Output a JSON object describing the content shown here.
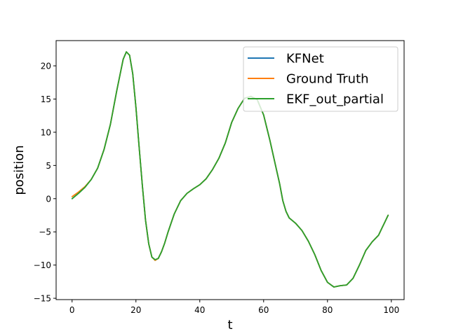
{
  "chart_data": {
    "type": "line",
    "title": "",
    "xlabel": "t",
    "ylabel": "position",
    "xlim": [
      -5,
      104
    ],
    "ylim": [
      -15.2,
      23.8
    ],
    "xticks": [
      0,
      20,
      40,
      60,
      80,
      100
    ],
    "yticks": [
      -15,
      -10,
      -5,
      0,
      5,
      10,
      15,
      20
    ],
    "grid": false,
    "legend_position": "top-right",
    "series": [
      {
        "name": "KFNet",
        "color": "#1f77b4",
        "x": [
          0,
          2,
          4,
          6,
          8,
          10,
          12,
          14,
          16,
          17,
          18,
          19,
          20,
          21,
          22,
          23,
          24,
          25,
          26,
          27,
          28,
          29,
          30,
          31,
          32,
          34,
          36,
          38,
          40,
          42,
          44,
          46,
          48,
          50,
          52,
          54,
          56,
          58,
          60,
          62,
          64,
          65,
          66,
          67,
          68,
          70,
          72,
          74,
          76,
          78,
          80,
          82,
          84,
          86,
          88,
          90,
          92,
          94,
          96,
          97,
          98,
          99
        ],
        "y": [
          0,
          0.8,
          1.7,
          2.9,
          4.6,
          7.4,
          11.2,
          16.3,
          21.0,
          22.1,
          21.6,
          18.8,
          13.7,
          7.8,
          2.0,
          -3.2,
          -6.8,
          -8.8,
          -9.2,
          -9.0,
          -8.0,
          -6.7,
          -5.1,
          -3.7,
          -2.3,
          -0.3,
          0.8,
          1.5,
          2.1,
          3.0,
          4.4,
          6.1,
          8.4,
          11.5,
          13.6,
          15.1,
          15.4,
          14.9,
          12.6,
          8.7,
          4.4,
          2.3,
          -0.3,
          -1.9,
          -2.9,
          -3.7,
          -4.8,
          -6.4,
          -8.4,
          -10.8,
          -12.6,
          -13.3,
          -13.1,
          -13.0,
          -12.0,
          -10.0,
          -7.8,
          -6.5,
          -5.5,
          -4.5,
          -3.5,
          -2.5
        ],
        "_note": "index-aligned with x; the visible curve follows the same trace as ground truth"
      },
      {
        "name": "Ground Truth",
        "color": "#ff7f0e",
        "x": [
          0,
          2,
          4,
          6,
          8,
          10,
          12,
          14,
          16,
          17,
          18,
          19,
          20,
          21,
          22,
          23,
          24,
          25,
          26,
          27,
          28,
          29,
          30,
          31,
          32,
          34,
          36,
          38,
          40,
          42,
          44,
          46,
          48,
          50,
          52,
          54,
          56,
          58,
          60,
          62,
          64,
          65,
          66,
          67,
          68,
          70,
          72,
          74,
          76,
          78,
          80,
          82,
          84,
          86,
          88,
          90,
          92,
          94,
          96,
          97,
          98,
          99
        ],
        "y": [
          0.3,
          1.0,
          1.8,
          2.9,
          4.6,
          7.4,
          11.2,
          16.3,
          21.0,
          22.1,
          21.6,
          18.8,
          13.7,
          7.8,
          2.0,
          -3.2,
          -6.8,
          -8.8,
          -9.3,
          -9.0,
          -8.0,
          -6.7,
          -5.1,
          -3.7,
          -2.3,
          -0.3,
          0.8,
          1.5,
          2.1,
          3.0,
          4.4,
          6.1,
          8.4,
          11.5,
          13.6,
          15.1,
          15.4,
          14.9,
          12.6,
          8.7,
          4.4,
          2.3,
          -0.3,
          -1.9,
          -2.9,
          -3.7,
          -4.8,
          -6.4,
          -8.4,
          -10.8,
          -12.6,
          -13.3,
          -13.1,
          -13.0,
          -12.0,
          -10.0,
          -7.8,
          -6.5,
          -5.5,
          -4.5,
          -3.5,
          -2.5
        ]
      },
      {
        "name": "EKF_out_partial",
        "color": "#2ca02c",
        "x": [
          0,
          2,
          4,
          6,
          8,
          10,
          12,
          14,
          16,
          17,
          18,
          19,
          20,
          21,
          22,
          23,
          24,
          25,
          26,
          27,
          28,
          29,
          30,
          31,
          32,
          34,
          36,
          38,
          40,
          42,
          44,
          46,
          48,
          50,
          52,
          54,
          56,
          58,
          60,
          62,
          64,
          65,
          66,
          67,
          68,
          70,
          72,
          74,
          76,
          78,
          80,
          82,
          84,
          86,
          88,
          90,
          92,
          94,
          96,
          97,
          98,
          99
        ],
        "y": [
          0,
          0.8,
          1.7,
          2.9,
          4.6,
          7.4,
          11.2,
          16.3,
          21.0,
          22.1,
          21.6,
          18.8,
          13.7,
          7.8,
          2.0,
          -3.2,
          -6.8,
          -8.8,
          -9.2,
          -9.0,
          -8.0,
          -6.7,
          -5.1,
          -3.7,
          -2.3,
          -0.3,
          0.8,
          1.5,
          2.1,
          3.0,
          4.4,
          6.1,
          8.4,
          11.5,
          13.6,
          15.1,
          15.4,
          14.9,
          12.6,
          8.7,
          4.4,
          2.3,
          -0.3,
          -1.9,
          -2.9,
          -3.7,
          -4.8,
          -6.4,
          -8.4,
          -10.8,
          -12.6,
          -13.3,
          -13.1,
          -13.0,
          -12.0,
          -10.0,
          -7.8,
          -6.5,
          -5.5,
          -4.5,
          -3.5,
          -2.5
        ]
      }
    ]
  }
}
